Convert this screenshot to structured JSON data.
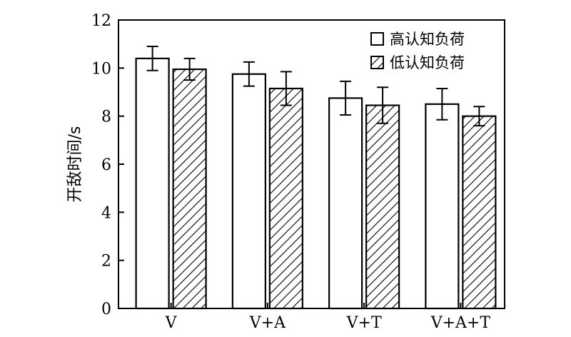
{
  "chart_data": {
    "type": "bar",
    "title": "",
    "xlabel": "",
    "ylabel": "开敌时间/s",
    "categories": [
      "V",
      "V+A",
      "V+T",
      "V+A+T"
    ],
    "ylim": [
      0,
      12
    ],
    "yticks": [
      0,
      2,
      4,
      6,
      8,
      10,
      12
    ],
    "grid": false,
    "legend_position": "top-right",
    "series": [
      {
        "name": "高认知负荷",
        "pattern": "none",
        "values": [
          10.4,
          9.75,
          8.75,
          8.5
        ],
        "errors": [
          0.5,
          0.5,
          0.7,
          0.65
        ]
      },
      {
        "name": "低认知负荷",
        "pattern": "hatch",
        "values": [
          9.95,
          9.15,
          8.45,
          8.0
        ],
        "errors": [
          0.45,
          0.7,
          0.75,
          0.4
        ]
      }
    ]
  }
}
